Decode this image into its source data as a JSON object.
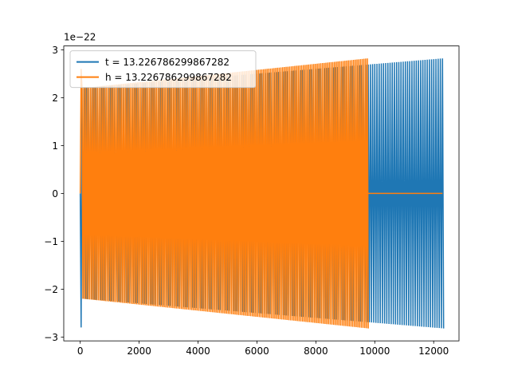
{
  "chart_data": {
    "type": "line",
    "title": "",
    "xlabel": "",
    "ylabel": "",
    "offset_label": "1e−22",
    "xlim": [
      -560,
      12860
    ],
    "ylim": [
      -3.08,
      3.08
    ],
    "x_ticks": [
      0,
      2000,
      4000,
      6000,
      8000,
      10000,
      12000
    ],
    "x_tick_labels": [
      "0",
      "2000",
      "4000",
      "6000",
      "8000",
      "10000",
      "12000"
    ],
    "y_ticks": [
      -3,
      -2,
      -1,
      0,
      1,
      2,
      3
    ],
    "y_tick_labels": [
      "−3",
      "−2",
      "−1",
      "0",
      "1",
      "2",
      "3"
    ],
    "grid": false,
    "legend": {
      "placement": "top-left"
    },
    "series": [
      {
        "name": "t = 13.226786299867282",
        "color": "#1f77b4",
        "x_start": 0,
        "x_end": 12300,
        "initial_peak": -2.8,
        "amplitude_start": 2.2,
        "amplitude_end": 2.82,
        "flat_after": null
      },
      {
        "name": "h = 13.226786299867282",
        "color": "#ff7f0e",
        "x_start": 0,
        "x_end": 9750,
        "initial_peak": 2.6,
        "amplitude_start": 2.2,
        "amplitude_end": 2.82,
        "flat_after": {
          "x_start": 9750,
          "x_end": 12300,
          "y": 0
        }
      }
    ]
  }
}
